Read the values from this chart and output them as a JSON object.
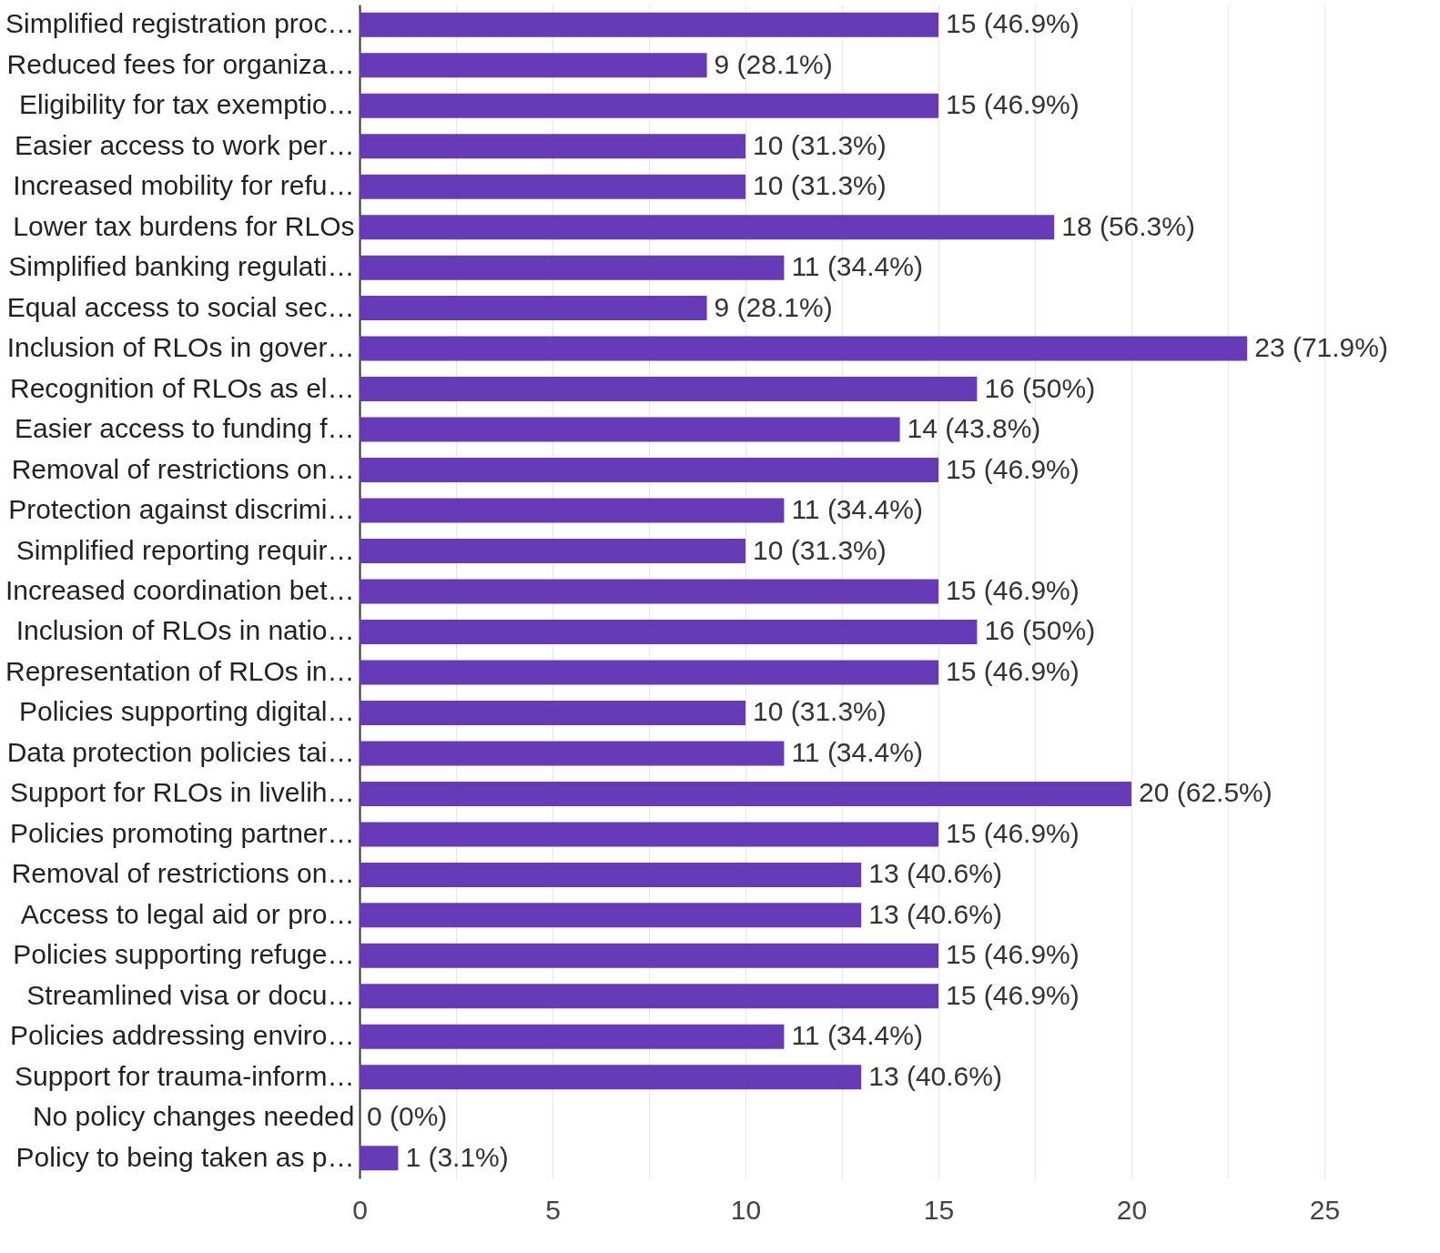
{
  "chart_data": {
    "type": "bar",
    "orientation": "horizontal",
    "categories": [
      "Simplified registration proc…",
      "Reduced fees for organiza…",
      "Eligibility for tax exemptio…",
      "Easier access to work per…",
      "Increased mobility for refu…",
      "Lower tax burdens for RLOs",
      "Simplified banking regulati…",
      "Equal access to social sec…",
      "Inclusion of RLOs in gover…",
      "Recognition of RLOs as el…",
      "Easier access to funding f…",
      "Removal of restrictions on…",
      "Protection against discrimi…",
      "Simplified reporting requir…",
      "Increased coordination bet…",
      "Inclusion of RLOs in natio…",
      "Representation of RLOs in…",
      "Policies supporting digital…",
      "Data protection policies tai…",
      "Support for RLOs in livelih…",
      "Policies promoting partner…",
      "Removal of restrictions on…",
      "Access to legal aid or pro…",
      "Policies supporting refuge…",
      "Streamlined visa or docu…",
      "Policies addressing enviro…",
      "Support for trauma-inform…",
      "No policy changes needed",
      "Policy to being taken as p…"
    ],
    "values": [
      15,
      9,
      15,
      10,
      10,
      18,
      11,
      9,
      23,
      16,
      14,
      15,
      11,
      10,
      15,
      16,
      15,
      10,
      11,
      20,
      15,
      13,
      13,
      15,
      15,
      11,
      13,
      0,
      1
    ],
    "value_labels": [
      "15 (46.9%)",
      "9 (28.1%)",
      "15 (46.9%)",
      "10 (31.3%)",
      "10 (31.3%)",
      "18 (56.3%)",
      "11 (34.4%)",
      "9 (28.1%)",
      "23 (71.9%)",
      "16 (50%)",
      "14 (43.8%)",
      "15 (46.9%)",
      "11 (34.4%)",
      "10 (31.3%)",
      "15 (46.9%)",
      "16 (50%)",
      "15 (46.9%)",
      "10 (31.3%)",
      "11 (34.4%)",
      "20 (62.5%)",
      "15 (46.9%)",
      "13 (40.6%)",
      "13 (40.6%)",
      "15 (46.9%)",
      "15 (46.9%)",
      "11 (34.4%)",
      "13 (40.6%)",
      "0 (0%)",
      "1 (3.1%)"
    ],
    "color": "#673ab7",
    "xlim": [
      0,
      25
    ],
    "xticks": [
      0,
      {
        "value": 2.5,
        "label": null
      },
      5,
      {
        "value": 7.5,
        "label": null
      },
      10,
      {
        "value": 12.5,
        "label": null
      },
      15,
      {
        "value": 17.5,
        "label": null
      },
      20,
      {
        "value": 22.5,
        "label": null
      },
      25
    ],
    "grid": "x"
  }
}
